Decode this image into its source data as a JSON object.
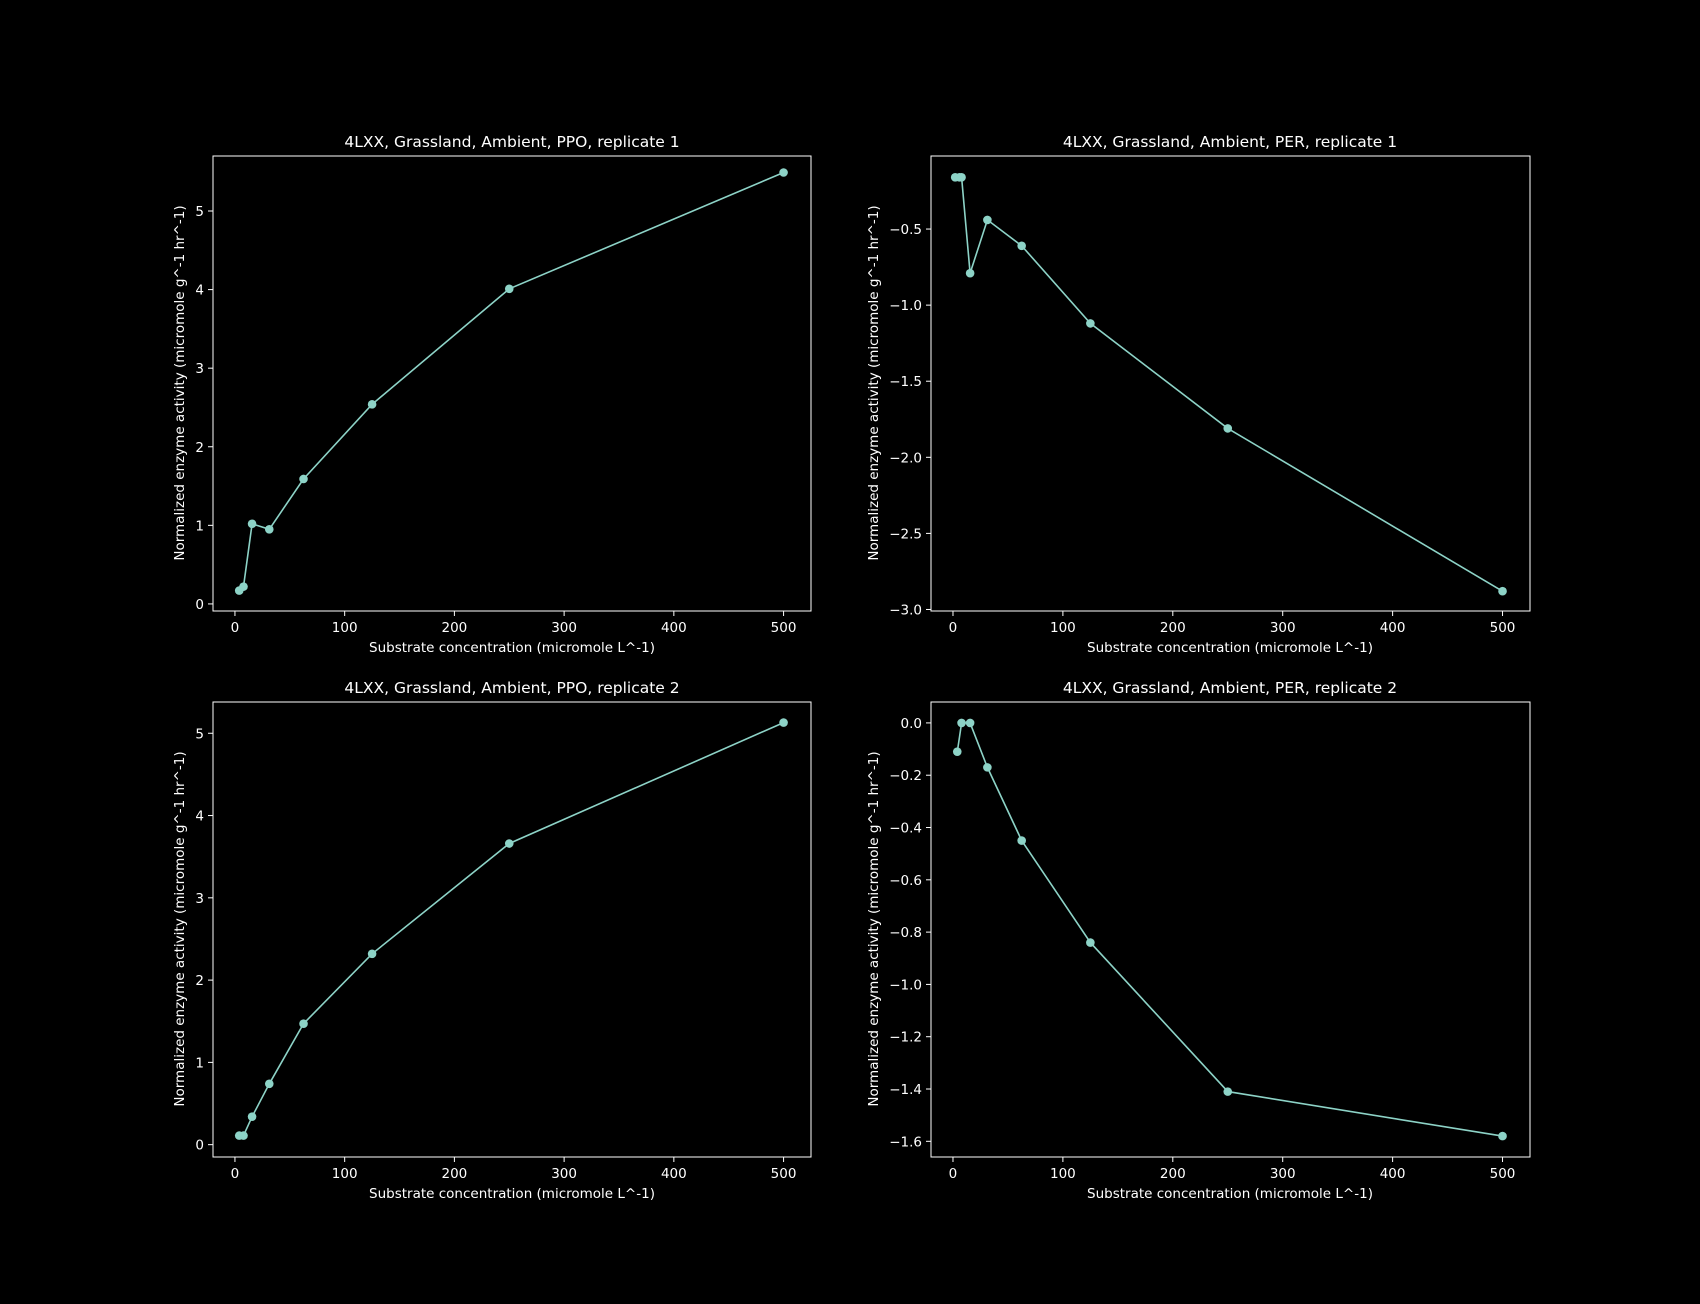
{
  "style": {
    "background": "#000000",
    "foreground": "#ffffff",
    "series_color": "#8dd3c7"
  },
  "chart_data": [
    {
      "type": "line",
      "title": "4LXX, Grassland, Ambient, PPO, replicate 1",
      "xlabel": "Substrate concentration (micromole L^-1)",
      "ylabel": "Normalized enzyme activity (micromole g^-1 hr^-1)",
      "xlim": [
        -20,
        525
      ],
      "ylim": [
        -0.09,
        5.7
      ],
      "xticks": [
        0,
        100,
        200,
        300,
        400,
        500
      ],
      "yticks": [
        0,
        1,
        2,
        3,
        4,
        5
      ],
      "ytick_labels": [
        "0",
        "1",
        "2",
        "3",
        "4",
        "5"
      ],
      "marker": "circle",
      "grid": false,
      "series": [
        {
          "x": [
            3.9,
            7.8,
            15.6,
            31.3,
            62.5,
            125,
            250,
            500
          ],
          "y": [
            0.17,
            0.22,
            1.02,
            0.95,
            1.59,
            2.54,
            4.01,
            5.49
          ]
        }
      ]
    },
    {
      "type": "line",
      "title": "4LXX, Grassland, Ambient, PER, replicate 1",
      "xlabel": "Substrate concentration (micromole L^-1)",
      "ylabel": "Normalized enzyme activity (micromole g^-1 hr^-1)",
      "xlim": [
        -20,
        525
      ],
      "ylim": [
        -3.01,
        -0.02
      ],
      "xticks": [
        0,
        100,
        200,
        300,
        400,
        500
      ],
      "yticks": [
        -0.5,
        -1.0,
        -1.5,
        -2.0,
        -2.5,
        -3.0
      ],
      "ytick_labels": [
        "−0.5",
        "−1.0",
        "−1.5",
        "−2.0",
        "−2.5",
        "−3.0"
      ],
      "marker": "circle",
      "grid": false,
      "series": [
        {
          "x": [
            2,
            5.9,
            7.8,
            15.6,
            31.3,
            62.5,
            125,
            250,
            500
          ],
          "y": [
            -0.16,
            -0.16,
            -0.16,
            -0.79,
            -0.44,
            -0.61,
            -1.12,
            -1.81,
            -2.88
          ]
        }
      ]
    },
    {
      "type": "line",
      "title": "4LXX, Grassland, Ambient, PPO, replicate 2",
      "xlabel": "Substrate concentration (micromole L^-1)",
      "ylabel": "Normalized enzyme activity (micromole g^-1 hr^-1)",
      "xlim": [
        -20,
        525
      ],
      "ylim": [
        -0.15,
        5.38
      ],
      "xticks": [
        0,
        100,
        200,
        300,
        400,
        500
      ],
      "yticks": [
        0,
        1,
        2,
        3,
        4,
        5
      ],
      "ytick_labels": [
        "0",
        "1",
        "2",
        "3",
        "4",
        "5"
      ],
      "marker": "circle",
      "grid": false,
      "series": [
        {
          "x": [
            3.9,
            7.8,
            15.6,
            31.3,
            62.5,
            125,
            250,
            500
          ],
          "y": [
            0.11,
            0.11,
            0.34,
            0.74,
            1.47,
            2.32,
            3.66,
            5.13
          ]
        }
      ]
    },
    {
      "type": "line",
      "title": "4LXX, Grassland, Ambient, PER, replicate 2",
      "xlabel": "Substrate concentration (micromole L^-1)",
      "ylabel": "Normalized enzyme activity (micromole g^-1 hr^-1)",
      "xlim": [
        -20,
        525
      ],
      "ylim": [
        -1.66,
        0.08
      ],
      "xticks": [
        0,
        100,
        200,
        300,
        400,
        500
      ],
      "yticks": [
        0.0,
        -0.2,
        -0.4,
        -0.6,
        -0.8,
        -1.0,
        -1.2,
        -1.4,
        -1.6
      ],
      "ytick_labels": [
        "0.0",
        "−0.2",
        "−0.4",
        "−0.6",
        "−0.8",
        "−1.0",
        "−1.2",
        "−1.4",
        "−1.6"
      ],
      "marker": "circle",
      "grid": false,
      "series": [
        {
          "x": [
            3.9,
            7.8,
            15.6,
            31.3,
            62.5,
            125,
            250,
            500
          ],
          "y": [
            -0.11,
            0.0,
            0.0,
            -0.17,
            -0.45,
            -0.84,
            -1.41,
            -1.58
          ]
        }
      ]
    }
  ]
}
